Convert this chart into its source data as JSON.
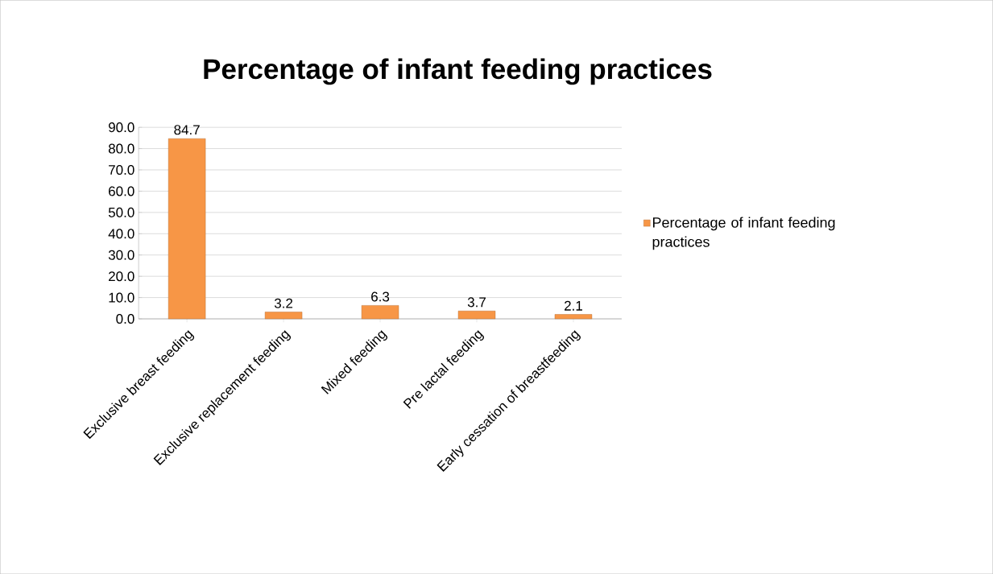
{
  "chart_data": {
    "type": "bar",
    "title": "Percentage of infant feeding practices",
    "categories": [
      "Exclusive breast feeding",
      "Exclusive replacement feeding",
      "Mixed feeding",
      "Pre lactal feeding",
      "Early cessation of breastfeeding"
    ],
    "series": [
      {
        "name": "Percentage of infant feeding practices",
        "color": "#f79646",
        "values": [
          84.7,
          3.2,
          6.3,
          3.7,
          2.1
        ]
      }
    ],
    "ylim": [
      0,
      90
    ],
    "yticks": [
      {
        "value": 0,
        "label": "0.0"
      },
      {
        "value": 10,
        "label": "10.0"
      },
      {
        "value": 20,
        "label": "20.0"
      },
      {
        "value": 30,
        "label": "30.0"
      },
      {
        "value": 40,
        "label": "40.0"
      },
      {
        "value": 50,
        "label": "50.0"
      },
      {
        "value": 60,
        "label": "60.0"
      },
      {
        "value": 70,
        "label": "70.0"
      },
      {
        "value": 80,
        "label": "80.0"
      },
      {
        "value": 90,
        "label": "90.0"
      }
    ],
    "grid": "y",
    "legend": "right",
    "data_labels": true
  }
}
